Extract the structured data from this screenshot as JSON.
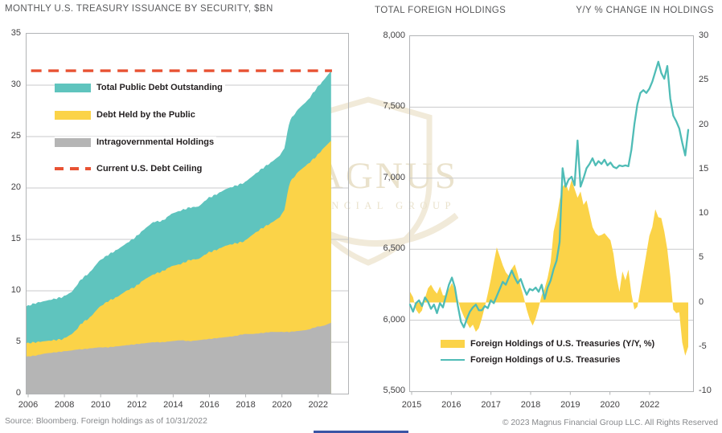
{
  "page": {
    "footer_left": "Source: Bloomberg. Foreign holdings as of 10/31/2022",
    "footer_right": "© 2023 Magnus Financial Group LLC. All Rights Reserved"
  },
  "watermark": {
    "word": "MAGNUS",
    "subword": "FINANCIAL GROUP"
  },
  "colors": {
    "teal": "#5fc4be",
    "teal_line": "#4fbcb6",
    "yellow": "#fbd348",
    "gray": "#b5b5b5",
    "red": "#e85233",
    "grid": "#c9cacb",
    "border": "#b2b4b6",
    "title": "#58595b",
    "tick": "#414042",
    "legend": "#231f20",
    "footer": "#87898c",
    "wm_stroke": "#f1ead9",
    "wm_text": "#eae2cc",
    "accent_bar": "#3a55a5"
  },
  "chart_data": [
    {
      "type": "area",
      "title": "MONTHLY U.S. TREASURY ISSUANCE BY SECURITY, $BN",
      "xlim": [
        2006,
        2023.74
      ],
      "ylim": [
        0,
        35
      ],
      "x_tick_labels": [
        "2006",
        "2008",
        "2010",
        "2012",
        "2014",
        "2016",
        "2018",
        "2020",
        "2022"
      ],
      "y_tick_labels": [
        "35",
        "30",
        "25",
        "20",
        "15",
        "10",
        "5",
        "0"
      ],
      "grid": true,
      "legend_position": "upper-left-inside",
      "x_anchors": [
        2006.0,
        2006.5,
        2007.0,
        2007.5,
        2008.0,
        2008.5,
        2008.8,
        2009.0,
        2009.5,
        2010.0,
        2010.5,
        2011.0,
        2011.5,
        2012.0,
        2012.5,
        2013.0,
        2013.5,
        2014.0,
        2014.5,
        2015.0,
        2015.5,
        2016.0,
        2016.5,
        2017.0,
        2017.5,
        2018.0,
        2018.5,
        2019.0,
        2019.5,
        2020.0,
        2020.25,
        2020.5,
        2021.0,
        2021.5,
        2022.0,
        2022.4,
        2022.8
      ],
      "series": [
        {
          "name": "Total Public Debt Outstanding",
          "color": "#5fc4be",
          "type": "area",
          "values": [
            8.5,
            8.8,
            9.0,
            9.2,
            9.4,
            9.9,
            10.6,
            11.1,
            11.8,
            12.9,
            13.5,
            14.0,
            14.6,
            15.2,
            16.0,
            16.7,
            16.8,
            17.5,
            17.8,
            18.1,
            18.2,
            19.0,
            19.4,
            19.9,
            20.2,
            20.5,
            21.2,
            21.9,
            22.5,
            23.2,
            24.0,
            26.5,
            27.7,
            28.5,
            29.7,
            30.5,
            31.4
          ]
        },
        {
          "name": "Debt Held by the Public",
          "color": "#fbd348",
          "type": "area",
          "values": [
            4.9,
            5.0,
            5.1,
            5.2,
            5.3,
            5.8,
            6.3,
            6.8,
            7.4,
            8.4,
            9.0,
            9.4,
            10.0,
            10.4,
            11.1,
            11.6,
            11.9,
            12.4,
            12.6,
            13.0,
            13.1,
            13.7,
            14.0,
            14.4,
            14.6,
            14.8,
            15.5,
            16.1,
            16.6,
            17.2,
            18.0,
            20.5,
            21.6,
            22.3,
            23.1,
            23.9,
            24.6
          ]
        },
        {
          "name": "Intragovernmental Holdings",
          "color": "#b5b5b5",
          "type": "area",
          "values": [
            3.6,
            3.7,
            3.9,
            4.0,
            4.1,
            4.2,
            4.3,
            4.3,
            4.4,
            4.5,
            4.5,
            4.6,
            4.7,
            4.8,
            4.9,
            5.0,
            5.0,
            5.1,
            5.2,
            5.1,
            5.2,
            5.3,
            5.4,
            5.5,
            5.6,
            5.8,
            5.8,
            5.9,
            6.0,
            6.0,
            6.0,
            6.0,
            6.1,
            6.2,
            6.5,
            6.6,
            6.9
          ]
        },
        {
          "name": "Current U.S. Debt Ceiling",
          "color": "#e85233",
          "type": "dashed-hline",
          "value": 31.4
        }
      ]
    },
    {
      "type": "line+area-dual-axis",
      "title_left": "TOTAL FOREIGN HOLDINGS",
      "title_right": "Y/Y % CHANGE IN HOLDINGS",
      "x_start": "2015-01",
      "x_end": "2022-10",
      "x_step": "month",
      "x_tick_labels": [
        "2015",
        "2016",
        "2017",
        "2018",
        "2019",
        "2020",
        "2022"
      ],
      "y_ticks_left": [
        "8,000",
        "7,500",
        "7,000",
        "6,500",
        "6,000",
        "5,500"
      ],
      "ylim_left": [
        5500,
        8000
      ],
      "y_ticks_right": [
        "30",
        "25",
        "20",
        "15",
        "10",
        "5",
        "0",
        "-5",
        "-10"
      ],
      "ylim_right": [
        -10,
        30
      ],
      "grid": true,
      "legend_position": "lower-center-inside",
      "series": [
        {
          "name": "Foreign Holdings of U.S. Treasuries (Y/Y, %)",
          "color": "#fbd348",
          "axis": "right",
          "type": "area",
          "baseline": 0,
          "values": [
            1.2,
            0.6,
            -0.8,
            -1.3,
            -0.9,
            0.5,
            1.6,
            2.0,
            1.4,
            1.0,
            1.8,
            0.8,
            0.8,
            1.5,
            2.2,
            1.4,
            0.3,
            -0.8,
            -1.6,
            -2.3,
            -2.9,
            -2.5,
            -3.3,
            -2.9,
            -1.8,
            -0.5,
            1.0,
            2.6,
            4.5,
            6.2,
            5.2,
            4.2,
            3.4,
            3.0,
            3.8,
            4.3,
            3.2,
            1.8,
            0.6,
            -0.8,
            -1.9,
            -2.6,
            -1.8,
            -0.6,
            0.8,
            1.6,
            2.8,
            4.5,
            8.0,
            9.5,
            11.5,
            13.0,
            13.5,
            12.5,
            13.8,
            12.8,
            11.8,
            12.5,
            11.0,
            11.5,
            10.0,
            8.5,
            7.8,
            7.5,
            7.6,
            7.8,
            7.4,
            7.0,
            5.5,
            3.0,
            1.2,
            3.5,
            2.5,
            3.7,
            1.0,
            -0.8,
            -0.5,
            1.5,
            3.5,
            5.5,
            7.5,
            8.5,
            10.5,
            9.6,
            9.5,
            8.0,
            6.0,
            3.0,
            -0.8,
            -1.2,
            -1.1,
            -4.5,
            -6.0,
            -5.0
          ]
        },
        {
          "name": "Foreign Holdings of U.S. Treasuries",
          "color": "#4fbcb6",
          "axis": "left",
          "type": "line",
          "values": [
            6110,
            6060,
            6120,
            6140,
            6100,
            6160,
            6130,
            6080,
            6110,
            6050,
            6120,
            6090,
            6170,
            6250,
            6300,
            6230,
            6100,
            5990,
            5950,
            6010,
            6060,
            6090,
            6110,
            6070,
            6070,
            6100,
            6085,
            6140,
            6120,
            6170,
            6220,
            6270,
            6250,
            6300,
            6350,
            6300,
            6260,
            6290,
            6230,
            6180,
            6220,
            6210,
            6230,
            6200,
            6250,
            6150,
            6230,
            6280,
            6360,
            6420,
            6550,
            7070,
            6940,
            6990,
            7010,
            6950,
            7265,
            6940,
            7000,
            7070,
            7100,
            7140,
            7090,
            7120,
            7100,
            7130,
            7090,
            7110,
            7080,
            7070,
            7090,
            7084,
            7090,
            7084,
            7200,
            7380,
            7520,
            7600,
            7620,
            7600,
            7630,
            7680,
            7750,
            7820,
            7740,
            7700,
            7790,
            7560,
            7440,
            7400,
            7350,
            7250,
            7160,
            7340
          ]
        }
      ]
    }
  ]
}
